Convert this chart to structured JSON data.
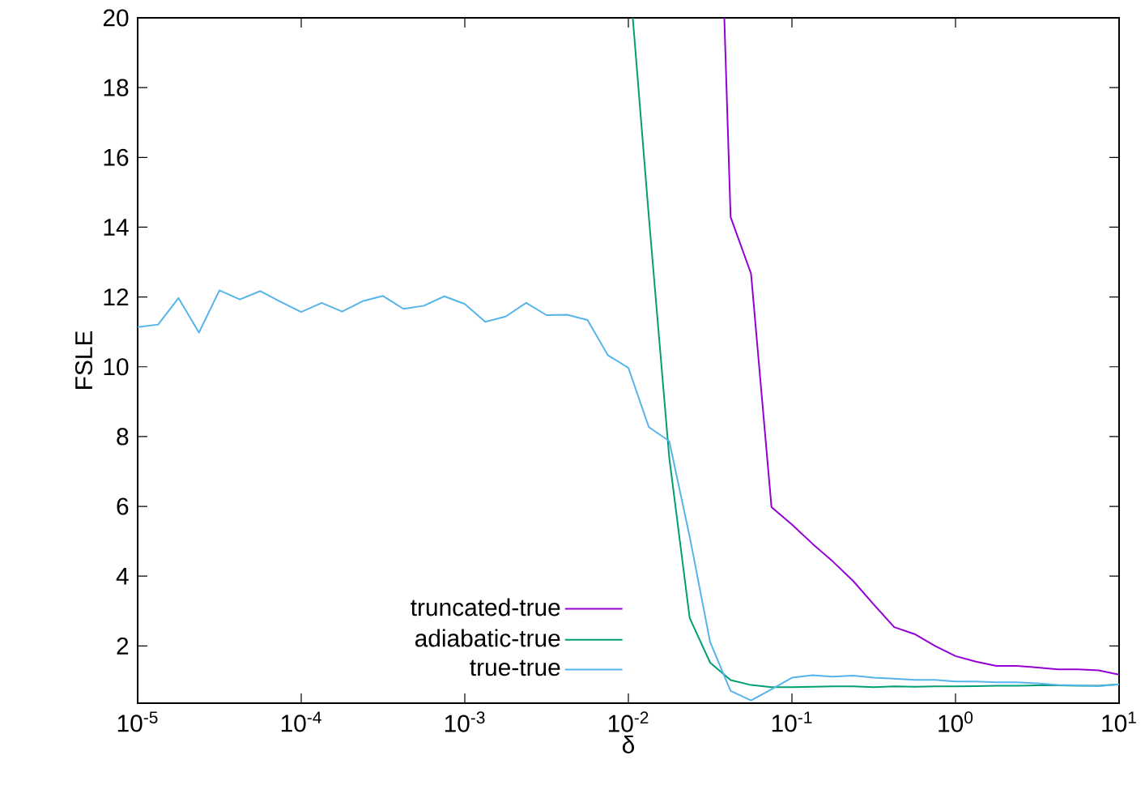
{
  "chart_data": {
    "type": "line",
    "xlabel": "δ",
    "ylabel": "FSLE",
    "log": "x",
    "xlim": [
      1e-05,
      10
    ],
    "ylim": [
      0.36,
      20
    ],
    "xticks": [
      {
        "value": 1e-05,
        "label": "10$^{-5}$"
      },
      {
        "value": 0.0001,
        "label": "10$^{-4}$"
      },
      {
        "value": 0.001,
        "label": "10$^{-3}$"
      },
      {
        "value": 0.01,
        "label": "10$^{-2}$"
      },
      {
        "value": 0.1,
        "label": "10$^{-1}$"
      },
      {
        "value": 1,
        "label": "10$^{0}$"
      },
      {
        "value": 10,
        "label": "10$^{1}$"
      }
    ],
    "yticks": [
      2,
      4,
      6,
      8,
      10,
      12,
      14,
      16,
      18,
      20
    ],
    "legend": "bottom left",
    "series": [
      {
        "name": "truncated-true",
        "color": "#9400d3",
        "x": [
          0.0386,
          0.04217,
          0.05623,
          0.07499,
          0.1,
          0.1334,
          0.1778,
          0.2371,
          0.3162,
          0.4217,
          0.5623,
          0.7499,
          1,
          1.334,
          1.778,
          2.371,
          3.162,
          4.217,
          5.623,
          7.499,
          10
        ],
        "values": [
          20,
          14.29,
          12.67,
          5.98,
          5.48,
          4.93,
          4.42,
          3.86,
          3.19,
          2.54,
          2.34,
          2.0,
          1.71,
          1.55,
          1.43,
          1.43,
          1.38,
          1.33,
          1.33,
          1.3,
          1.18
        ]
      },
      {
        "name": "adiabatic-true",
        "color": "#009e73",
        "x": [
          0.01064,
          0.01334,
          0.01778,
          0.02371,
          0.03162,
          0.04217,
          0.05623,
          0.07499,
          0.1,
          0.1334,
          0.1778,
          0.2371,
          0.3162,
          0.4217,
          0.5623,
          0.7499,
          1,
          1.334,
          1.778,
          2.371,
          3.162,
          4.217,
          5.623,
          7.499,
          10
        ],
        "values": [
          20,
          14.3,
          7.4,
          2.8,
          1.52,
          1.02,
          0.88,
          0.82,
          0.82,
          0.83,
          0.84,
          0.84,
          0.82,
          0.84,
          0.83,
          0.84,
          0.84,
          0.85,
          0.86,
          0.86,
          0.87,
          0.87,
          0.86,
          0.86,
          0.9
        ]
      },
      {
        "name": "true-true",
        "color": "#56b4e9",
        "x": [
          1e-05,
          1.334e-05,
          1.778e-05,
          2.371e-05,
          3.162e-05,
          4.217e-05,
          5.623e-05,
          7.499e-05,
          0.0001,
          0.0001334,
          0.0001778,
          0.0002371,
          0.0003162,
          0.0004217,
          0.0005623,
          0.0007499,
          0.001,
          0.001334,
          0.001778,
          0.002371,
          0.003162,
          0.004217,
          0.005623,
          0.007499,
          0.01,
          0.01334,
          0.01778,
          0.02371,
          0.03162,
          0.04217,
          0.05623,
          0.07499,
          0.1,
          0.1334,
          0.1778,
          0.2371,
          0.3162,
          0.4217,
          0.5623,
          0.7499,
          1,
          1.334,
          1.778,
          2.371,
          3.162,
          4.217,
          5.623,
          7.499,
          10
        ],
        "values": [
          11.14,
          11.21,
          11.97,
          10.98,
          12.19,
          11.93,
          12.17,
          11.86,
          11.57,
          11.83,
          11.58,
          11.88,
          12.03,
          11.66,
          11.75,
          12.02,
          11.8,
          11.29,
          11.44,
          11.83,
          11.48,
          11.49,
          11.34,
          10.33,
          9.97,
          8.27,
          7.87,
          5.13,
          2.11,
          0.71,
          0.44,
          0.76,
          1.09,
          1.16,
          1.12,
          1.15,
          1.09,
          1.06,
          1.03,
          1.03,
          0.98,
          0.98,
          0.96,
          0.96,
          0.93,
          0.88,
          0.87,
          0.85,
          0.9
        ]
      }
    ]
  }
}
